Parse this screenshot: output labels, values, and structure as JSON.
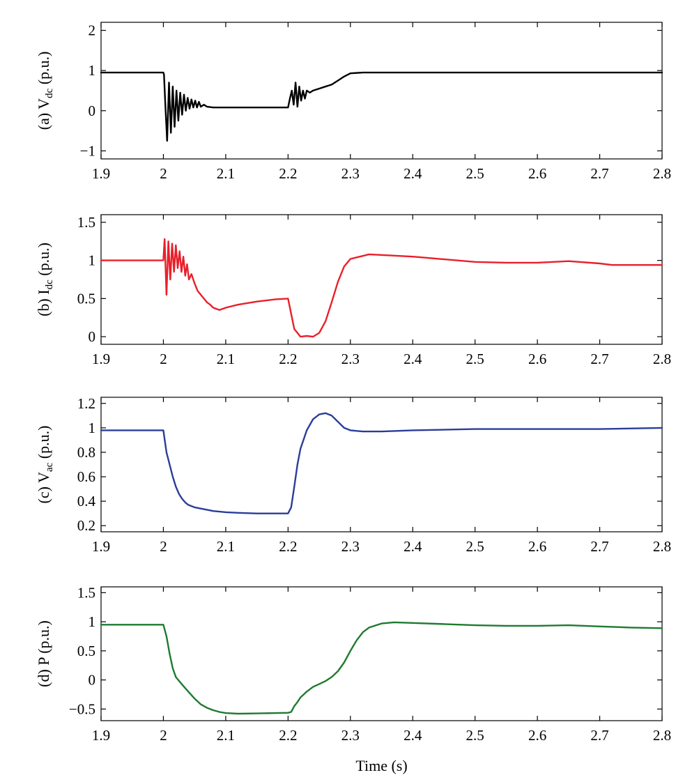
{
  "chart_data": [
    {
      "type": "line",
      "ylabel_prefix": "(a) V",
      "ylabel_sub": "dc",
      "ylabel_suffix": " (p.u.)",
      "xlim": [
        1.9,
        2.8
      ],
      "ylim": [
        -1.2,
        2.2
      ],
      "xticks": [
        1.9,
        2.0,
        2.1,
        2.2,
        2.3,
        2.4,
        2.5,
        2.6,
        2.7,
        2.8
      ],
      "xtick_labels": [
        "1.9",
        "2",
        "2.1",
        "2.2",
        "2.3",
        "2.4",
        "2.5",
        "2.6",
        "2.7",
        "2.8"
      ],
      "yticks": [
        -1,
        0,
        1,
        2
      ],
      "ytick_labels": [
        "−1",
        "0",
        "1",
        "2"
      ],
      "color": "#000000",
      "series": [
        {
          "x": [
            1.9,
            1.95,
            2.0,
            2.001,
            2.003,
            2.006,
            2.009,
            2.012,
            2.015,
            2.018,
            2.021,
            2.024,
            2.027,
            2.03,
            2.033,
            2.036,
            2.039,
            2.042,
            2.045,
            2.048,
            2.051,
            2.054,
            2.057,
            2.06,
            2.065,
            2.07,
            2.08,
            2.09,
            2.1,
            2.15,
            2.2,
            2.203,
            2.206,
            2.209,
            2.212,
            2.215,
            2.218,
            2.221,
            2.224,
            2.227,
            2.23,
            2.235,
            2.24,
            2.25,
            2.26,
            2.27,
            2.28,
            2.29,
            2.3,
            2.32,
            2.35,
            2.4,
            2.5,
            2.6,
            2.7,
            2.8
          ],
          "y": [
            0.95,
            0.95,
            0.95,
            0.9,
            0.2,
            -0.75,
            0.7,
            -0.55,
            0.6,
            -0.4,
            0.5,
            -0.25,
            0.45,
            -0.1,
            0.4,
            0.0,
            0.32,
            0.05,
            0.28,
            0.08,
            0.25,
            0.08,
            0.22,
            0.1,
            0.15,
            0.1,
            0.08,
            0.08,
            0.08,
            0.08,
            0.08,
            0.3,
            0.5,
            0.15,
            0.7,
            0.1,
            0.6,
            0.25,
            0.5,
            0.3,
            0.5,
            0.45,
            0.5,
            0.55,
            0.6,
            0.65,
            0.75,
            0.85,
            0.93,
            0.95,
            0.95,
            0.95,
            0.95,
            0.95,
            0.95,
            0.95
          ]
        }
      ]
    },
    {
      "type": "line",
      "ylabel_prefix": "(b) I",
      "ylabel_sub": "dc",
      "ylabel_suffix": " (p.u.)",
      "xlim": [
        1.9,
        2.8
      ],
      "ylim": [
        -0.1,
        1.6
      ],
      "xticks": [
        1.9,
        2.0,
        2.1,
        2.2,
        2.3,
        2.4,
        2.5,
        2.6,
        2.7,
        2.8
      ],
      "xtick_labels": [
        "1.9",
        "2",
        "2.1",
        "2.2",
        "2.3",
        "2.4",
        "2.5",
        "2.6",
        "2.7",
        "2.8"
      ],
      "yticks": [
        0,
        0.5,
        1,
        1.5
      ],
      "ytick_labels": [
        "0",
        "0.5",
        "1",
        "1.5"
      ],
      "color": "#e8202a",
      "series": [
        {
          "x": [
            1.9,
            1.95,
            2.0,
            2.002,
            2.005,
            2.008,
            2.011,
            2.014,
            2.017,
            2.02,
            2.023,
            2.026,
            2.029,
            2.032,
            2.035,
            2.038,
            2.041,
            2.045,
            2.05,
            2.055,
            2.06,
            2.065,
            2.07,
            2.075,
            2.08,
            2.09,
            2.1,
            2.12,
            2.15,
            2.18,
            2.2,
            2.205,
            2.21,
            2.215,
            2.22,
            2.23,
            2.24,
            2.25,
            2.26,
            2.27,
            2.28,
            2.29,
            2.3,
            2.33,
            2.4,
            2.5,
            2.55,
            2.6,
            2.65,
            2.7,
            2.72,
            2.8
          ],
          "y": [
            1.0,
            1.0,
            1.0,
            1.28,
            0.55,
            1.25,
            0.75,
            1.22,
            0.85,
            1.2,
            0.9,
            1.12,
            0.85,
            1.05,
            0.8,
            0.95,
            0.75,
            0.82,
            0.7,
            0.6,
            0.55,
            0.5,
            0.45,
            0.42,
            0.38,
            0.35,
            0.38,
            0.42,
            0.46,
            0.49,
            0.5,
            0.3,
            0.1,
            0.05,
            0.0,
            0.01,
            0.0,
            0.05,
            0.2,
            0.45,
            0.72,
            0.92,
            1.02,
            1.08,
            1.05,
            0.98,
            0.97,
            0.97,
            0.99,
            0.96,
            0.94,
            0.94
          ]
        }
      ]
    },
    {
      "type": "line",
      "ylabel_prefix": "(c) V",
      "ylabel_sub": "ac",
      "ylabel_suffix": " (p.u.)",
      "xlim": [
        1.9,
        2.8
      ],
      "ylim": [
        0.15,
        1.25
      ],
      "xticks": [
        1.9,
        2.0,
        2.1,
        2.2,
        2.3,
        2.4,
        2.5,
        2.6,
        2.7,
        2.8
      ],
      "xtick_labels": [
        "1.9",
        "2",
        "2.1",
        "2.2",
        "2.3",
        "2.4",
        "2.5",
        "2.6",
        "2.7",
        "2.8"
      ],
      "yticks": [
        0.2,
        0.4,
        0.6,
        0.8,
        1.0,
        1.2
      ],
      "ytick_labels": [
        "0.2",
        "0.4",
        "0.6",
        "0.8",
        "1",
        "1.2"
      ],
      "color": "#2a3d9a",
      "series": [
        {
          "x": [
            1.9,
            1.95,
            2.0,
            2.005,
            2.01,
            2.015,
            2.02,
            2.025,
            2.03,
            2.035,
            2.04,
            2.05,
            2.06,
            2.07,
            2.08,
            2.1,
            2.12,
            2.15,
            2.18,
            2.2,
            2.205,
            2.21,
            2.215,
            2.22,
            2.23,
            2.24,
            2.25,
            2.26,
            2.27,
            2.28,
            2.29,
            2.3,
            2.32,
            2.35,
            2.4,
            2.5,
            2.6,
            2.7,
            2.8
          ],
          "y": [
            0.98,
            0.98,
            0.98,
            0.8,
            0.7,
            0.6,
            0.52,
            0.46,
            0.42,
            0.39,
            0.37,
            0.35,
            0.34,
            0.33,
            0.32,
            0.31,
            0.305,
            0.3,
            0.3,
            0.3,
            0.35,
            0.52,
            0.7,
            0.83,
            0.98,
            1.07,
            1.11,
            1.12,
            1.1,
            1.05,
            1.0,
            0.98,
            0.97,
            0.97,
            0.98,
            0.99,
            0.99,
            0.99,
            1.0
          ]
        }
      ]
    },
    {
      "type": "line",
      "ylabel_prefix": "(d) P",
      "ylabel_sub": "",
      "ylabel_suffix": " (p.u.)",
      "xlabel": "Time (s)",
      "xlim": [
        1.9,
        2.8
      ],
      "ylim": [
        -0.7,
        1.6
      ],
      "xticks": [
        1.9,
        2.0,
        2.1,
        2.2,
        2.3,
        2.4,
        2.5,
        2.6,
        2.7,
        2.8
      ],
      "xtick_labels": [
        "1.9",
        "2",
        "2.1",
        "2.2",
        "2.3",
        "2.4",
        "2.5",
        "2.6",
        "2.7",
        "2.8"
      ],
      "yticks": [
        -0.5,
        0,
        0.5,
        1,
        1.5
      ],
      "ytick_labels": [
        "−0.5",
        "0",
        "0.5",
        "1",
        "1.5"
      ],
      "color": "#1e7a30",
      "series": [
        {
          "x": [
            1.9,
            1.95,
            2.0,
            2.005,
            2.01,
            2.015,
            2.02,
            2.03,
            2.04,
            2.05,
            2.06,
            2.07,
            2.08,
            2.09,
            2.1,
            2.12,
            2.15,
            2.18,
            2.2,
            2.205,
            2.21,
            2.215,
            2.22,
            2.23,
            2.24,
            2.25,
            2.26,
            2.27,
            2.28,
            2.29,
            2.3,
            2.31,
            2.32,
            2.33,
            2.35,
            2.37,
            2.4,
            2.45,
            2.5,
            2.55,
            2.6,
            2.65,
            2.7,
            2.75,
            2.8
          ],
          "y": [
            0.95,
            0.95,
            0.95,
            0.75,
            0.45,
            0.2,
            0.05,
            -0.08,
            -0.2,
            -0.32,
            -0.42,
            -0.48,
            -0.52,
            -0.55,
            -0.57,
            -0.58,
            -0.575,
            -0.57,
            -0.565,
            -0.55,
            -0.45,
            -0.38,
            -0.3,
            -0.2,
            -0.12,
            -0.07,
            -0.02,
            0.05,
            0.15,
            0.3,
            0.5,
            0.68,
            0.82,
            0.9,
            0.97,
            0.99,
            0.98,
            0.96,
            0.94,
            0.93,
            0.93,
            0.94,
            0.92,
            0.9,
            0.89
          ]
        }
      ]
    }
  ]
}
